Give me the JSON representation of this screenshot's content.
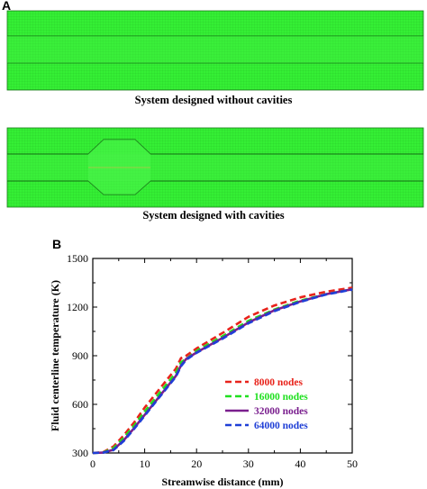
{
  "panel_a": {
    "letter": "A",
    "caption_top": "System designed without cavities",
    "caption_bottom": "System designed with cavities",
    "mesh_color": "#33ee33",
    "mesh_line_color": "#1a9a1a"
  },
  "panel_b": {
    "letter": "B"
  },
  "chart_data": {
    "type": "line",
    "xlabel": "Streamwise distance (mm)",
    "ylabel": "Fluid centerline temperature (K)",
    "xlim": [
      0,
      50
    ],
    "ylim": [
      300,
      1500
    ],
    "xticks": [
      "0",
      "10",
      "20",
      "30",
      "40",
      "50"
    ],
    "yticks": [
      "300",
      "600",
      "900",
      "1200",
      "1500"
    ],
    "legend_position": "center-right",
    "series": [
      {
        "name": "8000 nodes",
        "color": "#e8231b",
        "style": "dashed",
        "x": [
          0,
          2,
          4,
          6,
          8,
          10,
          12,
          14,
          16,
          17,
          18,
          20,
          25,
          30,
          35,
          40,
          45,
          50
        ],
        "y": [
          300,
          305,
          340,
          410,
          490,
          580,
          660,
          740,
          820,
          885,
          900,
          945,
          1040,
          1140,
          1210,
          1260,
          1295,
          1320
        ]
      },
      {
        "name": "16000 nodes",
        "color": "#1fe01f",
        "style": "dashed",
        "x": [
          0,
          2,
          4,
          6,
          8,
          10,
          12,
          14,
          16,
          17,
          18,
          20,
          25,
          30,
          35,
          40,
          45,
          50
        ],
        "y": [
          300,
          303,
          330,
          395,
          470,
          555,
          635,
          715,
          795,
          860,
          880,
          930,
          1020,
          1115,
          1185,
          1240,
          1280,
          1310
        ]
      },
      {
        "name": "32000 nodes",
        "color": "#7a1f8e",
        "style": "solid",
        "x": [
          0,
          2,
          4,
          6,
          8,
          10,
          12,
          14,
          16,
          17,
          18,
          20,
          25,
          30,
          35,
          40,
          45,
          50
        ],
        "y": [
          300,
          302,
          320,
          380,
          455,
          535,
          615,
          695,
          775,
          840,
          880,
          920,
          1010,
          1105,
          1180,
          1235,
          1280,
          1310
        ]
      },
      {
        "name": "64000 nodes",
        "color": "#1f3fd6",
        "style": "dashed",
        "x": [
          0,
          2,
          4,
          6,
          8,
          10,
          12,
          14,
          16,
          17,
          18,
          20,
          25,
          30,
          35,
          40,
          45,
          50
        ],
        "y": [
          300,
          302,
          318,
          375,
          450,
          530,
          610,
          690,
          770,
          835,
          875,
          918,
          1005,
          1100,
          1175,
          1232,
          1278,
          1308
        ]
      }
    ]
  }
}
